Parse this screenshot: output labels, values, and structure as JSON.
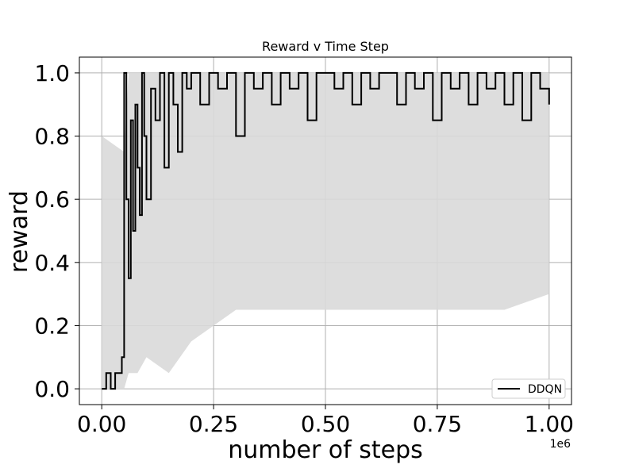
{
  "chart_data": {
    "type": "line",
    "title": "Reward v Time Step",
    "xlabel": "number of steps",
    "ylabel": "reward",
    "x_offset_label": "1e6",
    "xlim": [
      -0.05,
      1.05
    ],
    "ylim": [
      -0.05,
      1.05
    ],
    "x_ticks": [
      0.0,
      0.25,
      0.5,
      0.75,
      1.0
    ],
    "x_tick_labels": [
      "0.00",
      "0.25",
      "0.50",
      "0.75",
      "1.00"
    ],
    "y_ticks": [
      0.0,
      0.2,
      0.4,
      0.6,
      0.8,
      1.0
    ],
    "y_tick_labels": [
      "0.0",
      "0.2",
      "0.4",
      "0.6",
      "0.8",
      "1.0"
    ],
    "grid": true,
    "legend": {
      "placement": "lower-right",
      "entries": [
        "DDQN"
      ]
    },
    "colors": {
      "series": "#000000",
      "band": "#d9d9d9",
      "grid": "#b0b0b0"
    },
    "series": [
      {
        "name": "DDQN",
        "x": [
          0.0,
          0.01,
          0.02,
          0.03,
          0.04,
          0.045,
          0.05,
          0.055,
          0.06,
          0.065,
          0.07,
          0.075,
          0.08,
          0.085,
          0.09,
          0.095,
          0.1,
          0.11,
          0.12,
          0.13,
          0.14,
          0.15,
          0.16,
          0.17,
          0.18,
          0.19,
          0.2,
          0.22,
          0.24,
          0.26,
          0.28,
          0.3,
          0.32,
          0.34,
          0.36,
          0.38,
          0.4,
          0.42,
          0.44,
          0.46,
          0.48,
          0.5,
          0.52,
          0.54,
          0.56,
          0.58,
          0.6,
          0.62,
          0.64,
          0.66,
          0.68,
          0.7,
          0.72,
          0.74,
          0.76,
          0.78,
          0.8,
          0.82,
          0.84,
          0.86,
          0.88,
          0.9,
          0.92,
          0.94,
          0.96,
          0.98,
          1.0
        ],
        "y": [
          0.0,
          0.05,
          0.0,
          0.05,
          0.05,
          0.1,
          1.0,
          0.6,
          0.35,
          0.85,
          0.5,
          0.9,
          0.7,
          0.55,
          1.0,
          0.8,
          0.6,
          0.95,
          0.85,
          1.0,
          0.7,
          1.0,
          0.9,
          0.75,
          1.0,
          0.95,
          1.0,
          0.9,
          1.0,
          0.95,
          1.0,
          0.8,
          1.0,
          0.95,
          1.0,
          0.9,
          1.0,
          0.95,
          1.0,
          0.85,
          1.0,
          1.0,
          0.95,
          1.0,
          0.9,
          1.0,
          0.95,
          1.0,
          1.0,
          0.9,
          1.0,
          0.95,
          1.0,
          0.85,
          1.0,
          0.95,
          1.0,
          0.9,
          1.0,
          0.95,
          1.0,
          0.9,
          1.0,
          0.85,
          1.0,
          0.95,
          0.9
        ]
      }
    ],
    "band": {
      "x": [
        0.0,
        0.05,
        0.06,
        0.08,
        0.1,
        0.15,
        0.2,
        0.3,
        0.5,
        0.7,
        0.9,
        1.0
      ],
      "lower": [
        0.0,
        0.0,
        0.05,
        0.05,
        0.1,
        0.05,
        0.15,
        0.25,
        0.25,
        0.25,
        0.25,
        0.3
      ],
      "upper": [
        0.8,
        0.75,
        1.0,
        1.0,
        1.0,
        1.0,
        1.0,
        1.0,
        1.0,
        1.0,
        1.0,
        1.0
      ]
    }
  }
}
